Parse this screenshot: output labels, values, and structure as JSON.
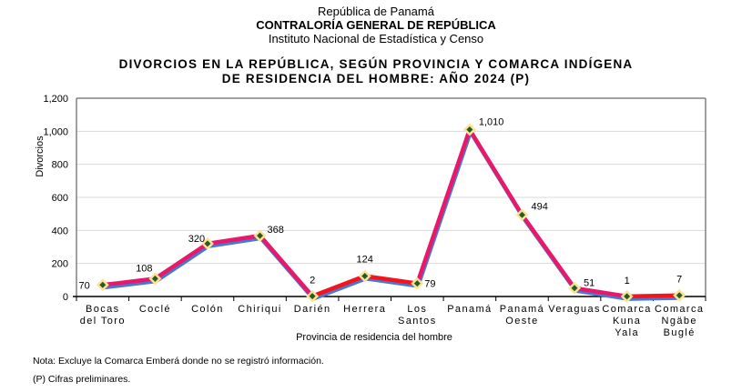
{
  "header": {
    "line1": "República de Panamá",
    "line2": "CONTRALORÍA GENERAL DE REPÚBLICA",
    "line3": "Instituto Nacional de Estadística y Censo"
  },
  "notes": {
    "note1": "Nota: Excluye la Comarca Emberá donde no se registró información.",
    "note2": "(P) Cifras preliminares."
  },
  "colors": {
    "line_main": "#E8186B",
    "line_red": "#F5141E",
    "line_shadow": "#4A78D0",
    "marker_fill": "#FBE39A",
    "marker_center": "#2E5A1E",
    "grid": "#D9D9D9",
    "axis": "#808080"
  },
  "chart_data": {
    "type": "line",
    "title": "DIVORCIOS EN LA REPÚBLICA, SEGÚN PROVINCIA Y COMARCA INDÍGENA",
    "subtitle": "DE RESIDENCIA DEL HOMBRE: AÑO 2024 (P)",
    "xlabel": "Provincia de residencia del hombre",
    "ylabel": "Divorcios",
    "ylim": [
      0,
      1200
    ],
    "yticks": [
      0,
      200,
      400,
      600,
      800,
      1000,
      1200
    ],
    "ytick_labels": [
      "0",
      "200",
      "400",
      "600",
      "800",
      "1,000",
      "1,200"
    ],
    "grid": true,
    "legend": "none",
    "categories": [
      [
        "Bocas",
        "del Toro"
      ],
      [
        "Coclé"
      ],
      [
        "Colón"
      ],
      [
        "Chiriqui"
      ],
      [
        "Darién"
      ],
      [
        "Herrera"
      ],
      [
        "Los",
        "Santos"
      ],
      [
        "Panamá"
      ],
      [
        "Panamá",
        "Oeste"
      ],
      [
        "Veraguas"
      ],
      [
        "Comarca",
        "Kuna",
        "Yala"
      ],
      [
        "Comarca",
        "Ngäbe",
        "Buglé"
      ]
    ],
    "series": [
      {
        "name": "Divorcios",
        "values": [
          70,
          108,
          320,
          368,
          2,
          124,
          79,
          1010,
          494,
          51,
          1,
          7
        ],
        "labels": [
          "70",
          "108",
          "320",
          "368",
          "2",
          "124",
          "79",
          "1,010",
          "494",
          "51",
          "1",
          "7"
        ]
      }
    ]
  }
}
